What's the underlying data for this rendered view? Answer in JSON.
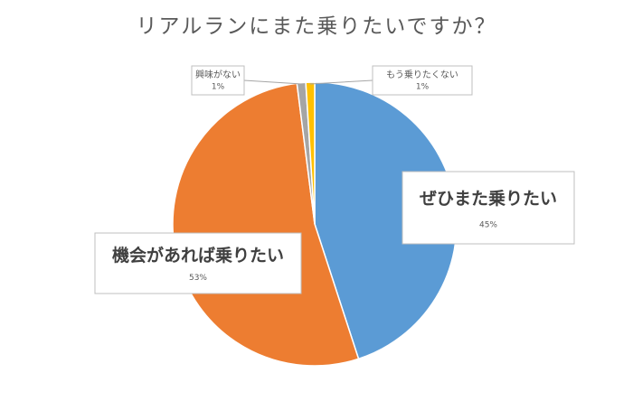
{
  "chart_data": {
    "type": "pie",
    "title": "リアルランにまた乗りたいですか？",
    "categories": [
      "ぜひまた乗りたい",
      "機会があれば乗りたい",
      "興味がない",
      "もう乗りたくない"
    ],
    "values": [
      45,
      53,
      1,
      1
    ],
    "value_labels": [
      "45%",
      "53%",
      "1%",
      "1%"
    ],
    "colors": [
      "#5b9bd5",
      "#ed7d31",
      "#a5a5a5",
      "#ffc000"
    ]
  }
}
